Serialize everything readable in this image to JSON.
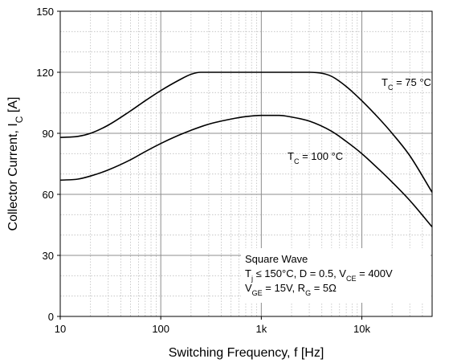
{
  "chart_data": {
    "type": "line",
    "xscale": "log",
    "xlim": [
      10,
      50000
    ],
    "ylim": [
      0,
      150
    ],
    "grid": true,
    "xlabel": {
      "main": "Switching Frequency, f [Hz]"
    },
    "ylabel": {
      "main": "Collector Current, I",
      "sub": "C",
      "suffix": " [A]"
    },
    "xticks": [
      {
        "value": 10,
        "label": "10"
      },
      {
        "value": 100,
        "label": "100"
      },
      {
        "value": 1000,
        "label": "1k"
      },
      {
        "value": 10000,
        "label": "10k"
      }
    ],
    "yticks": [
      {
        "value": 0,
        "label": "0"
      },
      {
        "value": 30,
        "label": "30"
      },
      {
        "value": 60,
        "label": "60"
      },
      {
        "value": 90,
        "label": "90"
      },
      {
        "value": 120,
        "label": "120"
      },
      {
        "value": 150,
        "label": "150"
      }
    ],
    "series": [
      {
        "label": {
          "main": "T",
          "sub": "C",
          "suffix": " = 75 °C"
        },
        "color": "#000000",
        "x": [
          10,
          15,
          20,
          30,
          50,
          70,
          100,
          150,
          200,
          250,
          300,
          500,
          1000,
          2000,
          3000,
          4000,
          5000,
          7000,
          10000,
          15000,
          20000,
          30000,
          50000
        ],
        "y": [
          88,
          88.5,
          90,
          94,
          101,
          106,
          111,
          116,
          119,
          120,
          120,
          120,
          120,
          120,
          120,
          119.5,
          118,
          113,
          106,
          97,
          90,
          79,
          61
        ]
      },
      {
        "label": {
          "main": "T",
          "sub": "C",
          "suffix": " = 100 °C"
        },
        "color": "#000000",
        "x": [
          10,
          15,
          20,
          30,
          50,
          70,
          100,
          150,
          200,
          300,
          500,
          700,
          1000,
          1500,
          2000,
          3000,
          5000,
          7000,
          10000,
          15000,
          20000,
          30000,
          50000
        ],
        "y": [
          67,
          67.5,
          69,
          72,
          77,
          81,
          85,
          89,
          91.5,
          94.5,
          97,
          98.2,
          98.8,
          98.8,
          98,
          96,
          91,
          86,
          80,
          72,
          66,
          57,
          44
        ]
      }
    ],
    "annotation": [
      [
        {
          "t": "Square Wave"
        }
      ],
      [
        {
          "t": "T"
        },
        {
          "t": "j",
          "sub": true
        },
        {
          "t": " ≤ 150°C, D = 0.5, V"
        },
        {
          "t": "CE",
          "sub": true
        },
        {
          "t": " = 400V"
        }
      ],
      [
        {
          "t": "V"
        },
        {
          "t": "GE",
          "sub": true
        },
        {
          "t": " = 15V, R"
        },
        {
          "t": "G",
          "sub": true
        },
        {
          "t": " = 5Ω"
        }
      ]
    ]
  }
}
